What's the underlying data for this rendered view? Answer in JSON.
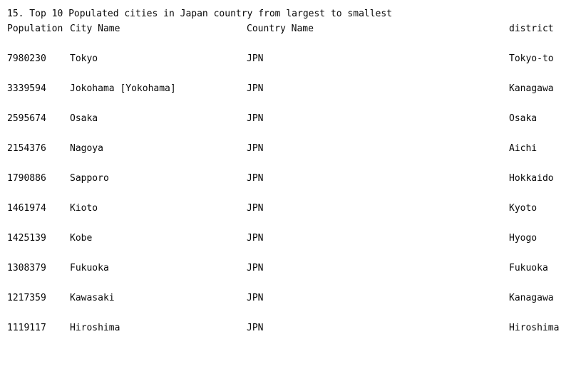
{
  "heading": "15. Top 10 Populated cities in Japan country from largest to smallest",
  "columns": {
    "population": "Population",
    "city": "City Name",
    "country": "Country Name",
    "district": "district"
  },
  "rows": [
    {
      "population": "7980230",
      "city": "Tokyo",
      "country": "JPN",
      "district": "Tokyo-to"
    },
    {
      "population": "3339594",
      "city": "Jokohama [Yokohama]",
      "country": "JPN",
      "district": "Kanagawa"
    },
    {
      "population": "2595674",
      "city": "Osaka",
      "country": "JPN",
      "district": "Osaka"
    },
    {
      "population": "2154376",
      "city": "Nagoya",
      "country": "JPN",
      "district": "Aichi"
    },
    {
      "population": "1790886",
      "city": "Sapporo",
      "country": "JPN",
      "district": "Hokkaido"
    },
    {
      "population": "1461974",
      "city": "Kioto",
      "country": "JPN",
      "district": "Kyoto"
    },
    {
      "population": "1425139",
      "city": "Kobe",
      "country": "JPN",
      "district": "Hyogo"
    },
    {
      "population": "1308379",
      "city": "Fukuoka",
      "country": "JPN",
      "district": "Fukuoka"
    },
    {
      "population": "1217359",
      "city": "Kawasaki",
      "country": "JPN",
      "district": "Kanagawa"
    },
    {
      "population": "1119117",
      "city": "Hiroshima",
      "country": "JPN",
      "district": "Hiroshima"
    }
  ]
}
